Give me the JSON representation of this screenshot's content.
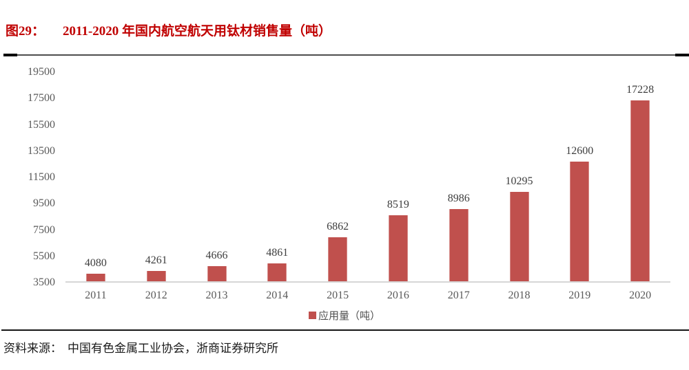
{
  "figure": {
    "label": "图29：",
    "title": "2011-2020 年国内航空航天用钛材销售量（吨）"
  },
  "legend": {
    "label": "应用量（吨）"
  },
  "source": {
    "label": "资料来源：",
    "text": "中国有色金属工业协会，浙商证券研究所"
  },
  "colors": {
    "bar": "#c0504d",
    "title": "#c00000",
    "axis_text": "#595959",
    "data_label": "#3d3d3d",
    "baseline": "#d6d6d6"
  },
  "chart_data": {
    "type": "bar",
    "title": "2011-2020 年国内航空航天用钛材销售量（吨）",
    "categories": [
      "2011",
      "2012",
      "2013",
      "2014",
      "2015",
      "2016",
      "2017",
      "2018",
      "2019",
      "2020"
    ],
    "values": [
      4080,
      4261,
      4666,
      4861,
      6862,
      8519,
      8986,
      10295,
      12600,
      17228
    ],
    "series_name": "应用量（吨）",
    "xlabel": "",
    "ylabel": "",
    "ylim": [
      3500,
      19500
    ],
    "yticks": [
      3500,
      5500,
      7500,
      9500,
      11500,
      13500,
      15500,
      17500,
      19500
    ],
    "grid": false,
    "data_labels": true,
    "legend_position": "bottom"
  }
}
